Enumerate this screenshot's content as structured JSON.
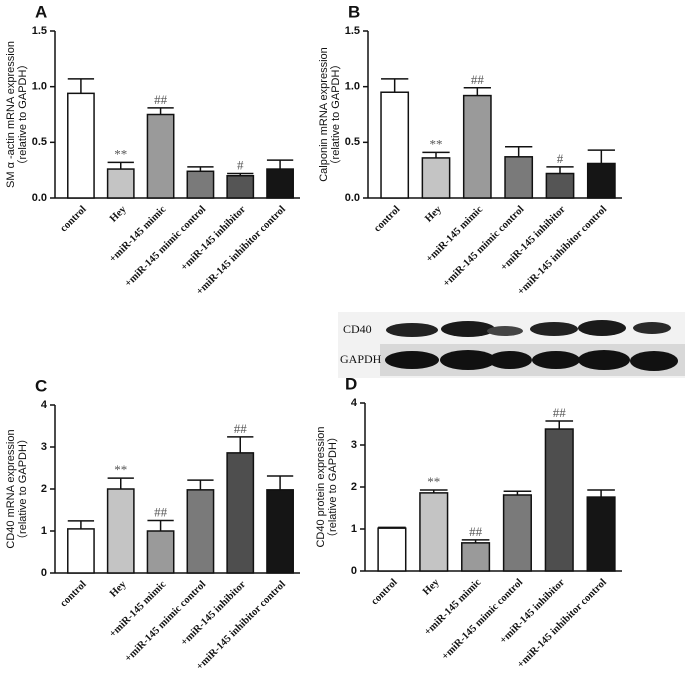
{
  "chart_data": [
    {
      "type": "bar",
      "panel_label": "A",
      "ylabel": [
        "SM α -actin mRNA expression",
        "（relative to GAPDH）"
      ],
      "categories": [
        "control",
        "Hey",
        "+miR-145 mimic",
        "+miR-145 mimic control",
        "+miR-145 inhibitor",
        "+miR-145 inhibitor control"
      ],
      "values": [
        0.94,
        0.26,
        0.75,
        0.24,
        0.2,
        0.26
      ],
      "errors": [
        0.13,
        0.06,
        0.06,
        0.04,
        0.02,
        0.08
      ],
      "annotations": [
        null,
        "**",
        "##",
        null,
        "#",
        null
      ],
      "colors": [
        "#ffffff",
        "#c4c4c4",
        "#9a9a9a",
        "#7a7a7a",
        "#555555",
        "#151515"
      ],
      "ylim": [
        0,
        1.5
      ],
      "yticks": [
        {
          "value": 0,
          "label": "0.0"
        },
        0.5,
        {
          "value": 1,
          "label": "1.0"
        },
        1.5
      ]
    },
    {
      "type": "bar",
      "panel_label": "B",
      "ylabel": [
        "Calponin mRNA expression",
        "（relative to GAPDH）"
      ],
      "categories": [
        "control",
        "Hey",
        "+miR-145 mimic",
        "+miR-145 mimic control",
        "+miR-145 inhibitor",
        "+miR-145 inhibitor control"
      ],
      "values": [
        0.95,
        0.36,
        0.92,
        0.37,
        0.22,
        0.31
      ],
      "errors": [
        0.12,
        0.05,
        0.07,
        0.09,
        0.06,
        0.12
      ],
      "annotations": [
        null,
        "**",
        "##",
        null,
        "#",
        null
      ],
      "colors": [
        "#ffffff",
        "#c4c4c4",
        "#9a9a9a",
        "#7a7a7a",
        "#555555",
        "#151515"
      ],
      "ylim": [
        0,
        1.5
      ],
      "yticks": [
        {
          "value": 0,
          "label": "0.0"
        },
        0.5,
        {
          "value": 1,
          "label": "1.0"
        },
        1.5
      ]
    },
    {
      "type": "bar",
      "panel_label": "C",
      "ylabel": [
        "CD40 mRNA expression",
        "（relative to GAPDH）"
      ],
      "categories": [
        "control",
        "Hey",
        "+miR-145 mimic",
        "+miR-145 mimic control",
        "+miR-145 inhibitor",
        "+miR-145 inhibitor control"
      ],
      "values": [
        1.05,
        2.0,
        1.0,
        1.98,
        2.86,
        1.98
      ],
      "errors": [
        0.19,
        0.26,
        0.25,
        0.23,
        0.38,
        0.33
      ],
      "annotations": [
        null,
        "**",
        "##",
        null,
        "##",
        null
      ],
      "colors": [
        "#ffffff",
        "#c4c4c4",
        "#9a9a9a",
        "#7a7a7a",
        "#4e4e4e",
        "#151515"
      ],
      "ylim": [
        0,
        4
      ],
      "yticks": [
        0,
        1,
        2,
        3,
        4
      ]
    },
    {
      "type": "bar",
      "panel_label": "D",
      "ylabel": [
        "CD40 protein expression",
        "（relative to GAPDH）"
      ],
      "categories": [
        "control",
        "Hey",
        "+miR-145 mimic",
        "+miR-145 mimic control",
        "+miR-145 inhibitor",
        "+miR-145 inhibitor control"
      ],
      "values": [
        1.02,
        1.86,
        0.67,
        1.81,
        3.38,
        1.76
      ],
      "errors": [
        0.02,
        0.07,
        0.07,
        0.09,
        0.19,
        0.17
      ],
      "annotations": [
        null,
        "**",
        "##",
        null,
        "##",
        null
      ],
      "colors": [
        "#ffffff",
        "#c4c4c4",
        "#9a9a9a",
        "#7a7a7a",
        "#4e4e4e",
        "#151515"
      ],
      "ylim": [
        0,
        4
      ],
      "yticks": [
        0,
        1,
        2,
        3,
        4
      ]
    }
  ],
  "blot": {
    "labels": [
      "CD40",
      "GAPDH"
    ]
  }
}
